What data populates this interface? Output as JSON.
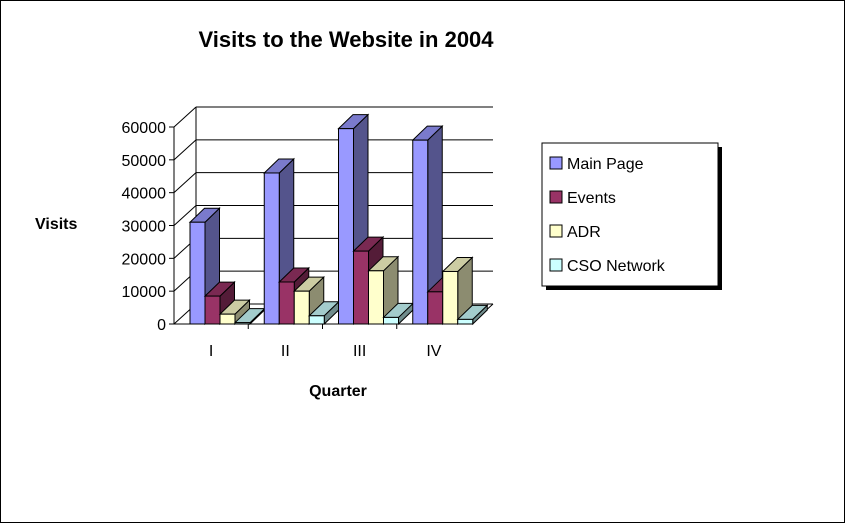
{
  "chart_data": {
    "type": "bar",
    "title": "Visits to the Website in 2004",
    "xlabel": "Quarter",
    "ylabel": "Visits",
    "categories": [
      "I",
      "II",
      "III",
      "IV"
    ],
    "ylim": [
      0,
      60000
    ],
    "yticks": [
      0,
      10000,
      20000,
      30000,
      40000,
      50000,
      60000
    ],
    "grid": true,
    "legend_position": "right",
    "series": [
      {
        "name": "Main Page",
        "color": "#9999ff",
        "values": [
          31000,
          46000,
          59500,
          56000
        ]
      },
      {
        "name": "Events",
        "color": "#993366",
        "values": [
          8500,
          12800,
          22200,
          9800
        ]
      },
      {
        "name": "ADR",
        "color": "#ffffcc",
        "values": [
          3000,
          10000,
          16200,
          16000
        ]
      },
      {
        "name": "CSO Network",
        "color": "#ccffff",
        "values": [
          400,
          2500,
          2000,
          1400
        ]
      }
    ]
  }
}
